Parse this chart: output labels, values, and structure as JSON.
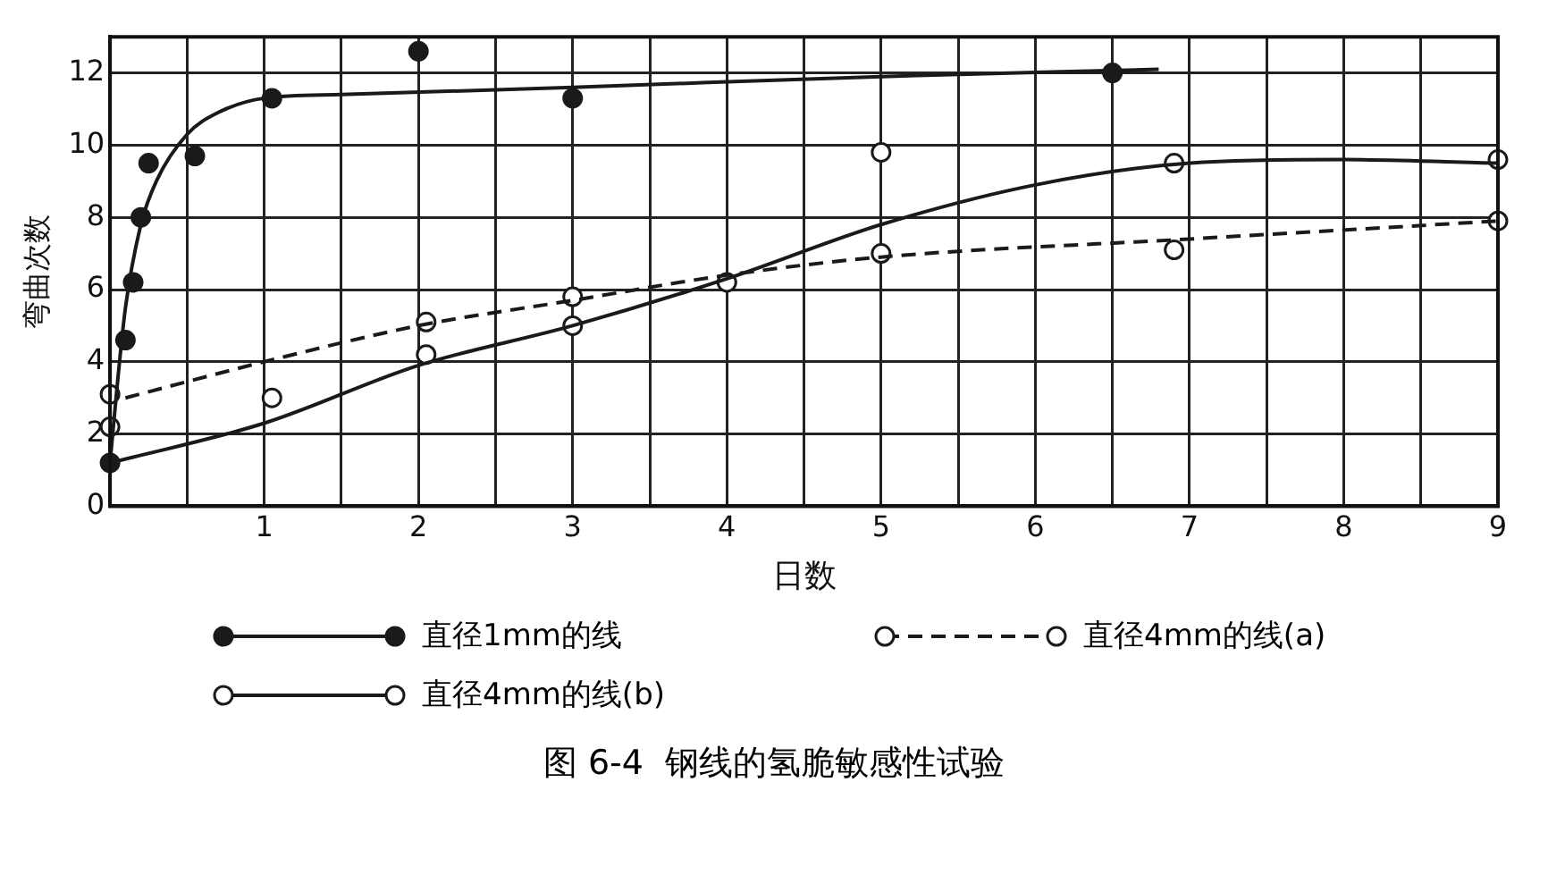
{
  "chart_data": {
    "type": "line",
    "title": "图 6-4  钢线的氢脆敏感性试验",
    "xlabel": "日数",
    "ylabel": "弯曲次数",
    "xlim": [
      0,
      9
    ],
    "xticks": [
      {
        "value": 0,
        "label": null
      },
      {
        "value": 0.5,
        "label": null
      },
      1,
      {
        "value": 1.5,
        "label": null
      },
      2,
      {
        "value": 2.5,
        "label": null
      },
      3,
      {
        "value": 3.5,
        "label": null
      },
      4,
      {
        "value": 4.5,
        "label": null
      },
      5,
      {
        "value": 5.5,
        "label": null
      },
      6,
      {
        "value": 6.5,
        "label": null
      },
      7,
      {
        "value": 7.5,
        "label": null
      },
      8,
      {
        "value": 8.5,
        "label": null
      },
      9
    ],
    "ylim": [
      0,
      13
    ],
    "yticks": [
      0,
      2,
      4,
      6,
      8,
      10,
      12
    ],
    "grid": true,
    "legend": "bottom",
    "series": [
      {
        "name": "直径1mm的线",
        "color": "#1a1a1a",
        "marker": "none",
        "line_style": "solid",
        "x": [
          0,
          0.05,
          0.1,
          0.2,
          0.3,
          0.5,
          0.7,
          1,
          1.5,
          3,
          5,
          6.8
        ],
        "values": [
          1.2,
          3.5,
          5.5,
          7.8,
          9,
          10.3,
          10.9,
          11.3,
          11.4,
          11.6,
          11.9,
          12.1
        ]
      },
      {
        "type": "scatter",
        "color": "#1a1a1a",
        "marker": "circle",
        "x": [
          0,
          0.1,
          0.15,
          0.2,
          0.25,
          0.55,
          1.05,
          2,
          3,
          6.5
        ],
        "values": [
          1.2,
          4.6,
          6.2,
          8,
          9.5,
          9.7,
          11.3,
          12.6,
          11.3,
          12
        ]
      },
      {
        "name": "直径4mm的线(a)",
        "color": "#1a1a1a",
        "marker": "none",
        "line_style": "dashed",
        "x": [
          0.1,
          1,
          2,
          3,
          4,
          5,
          7,
          9
        ],
        "values": [
          3,
          4,
          5,
          5.7,
          6.4,
          6.9,
          7.4,
          7.9
        ]
      },
      {
        "type": "scatter",
        "color": "#ffffff",
        "marker": "circle",
        "x": [
          0,
          2.05,
          3,
          5,
          6.9,
          9
        ],
        "values": [
          3.1,
          5.1,
          5.8,
          7,
          7.1,
          7.9
        ]
      },
      {
        "name": "直径4mm的线(b)",
        "color": "#1a1a1a",
        "marker": "none",
        "line_style": "solid",
        "x": [
          0,
          1,
          2,
          3,
          4,
          5,
          6,
          7,
          8,
          9
        ],
        "values": [
          1.2,
          2.3,
          3.9,
          5,
          6.3,
          7.8,
          8.9,
          9.5,
          9.6,
          9.5
        ]
      },
      {
        "type": "scatter",
        "color": "#ffffff",
        "marker": "circle",
        "x": [
          0,
          1.05,
          2.05,
          3,
          4,
          5,
          6.9,
          9
        ],
        "values": [
          2.2,
          3,
          4.2,
          5,
          6.2,
          9.8,
          9.5,
          9.6
        ]
      }
    ]
  }
}
